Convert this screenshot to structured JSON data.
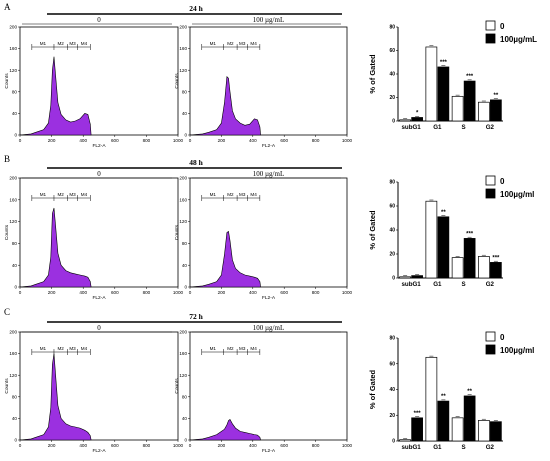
{
  "colors": {
    "histogram_fill": "#9b30e0",
    "bar_control": "#ffffff",
    "bar_treated": "#000000",
    "axis": "#000000"
  },
  "legend": {
    "control_label": "0"
  },
  "chart_data": [
    {
      "type": "area",
      "panel": "A",
      "time_label": "24 h",
      "treatment_label": "0",
      "xlabel": "FL2-A",
      "ylabel": "Counts",
      "xlim": [
        0,
        1000
      ],
      "ylim": [
        0,
        200
      ],
      "xticks": [
        "0",
        "200",
        "400",
        "600",
        "800",
        "1000"
      ],
      "yticks": [
        "0",
        "40",
        "80",
        "120",
        "160",
        "200"
      ],
      "markers": [
        "M1",
        "M2",
        "M3",
        "M4"
      ],
      "x": [
        0,
        70,
        100,
        150,
        180,
        195,
        205,
        215,
        225,
        240,
        260,
        290,
        320,
        350,
        380,
        410,
        430,
        445,
        450
      ],
      "values": [
        0,
        2,
        5,
        10,
        22,
        55,
        120,
        145,
        110,
        60,
        38,
        28,
        24,
        26,
        30,
        40,
        38,
        20,
        0
      ]
    },
    {
      "type": "area",
      "panel": "A",
      "time_label": "24 h",
      "treatment_label": "100 µg/mL",
      "xlabel": "FL2-A",
      "ylabel": "Counts",
      "xlim": [
        0,
        1000
      ],
      "ylim": [
        0,
        200
      ],
      "xticks": [
        "0",
        "200",
        "400",
        "600",
        "800",
        "1000"
      ],
      "yticks": [
        "0",
        "40",
        "80",
        "120",
        "160",
        "200"
      ],
      "markers": [
        "M1",
        "M2",
        "M3",
        "M4"
      ],
      "x": [
        0,
        80,
        120,
        170,
        200,
        220,
        235,
        245,
        255,
        270,
        290,
        320,
        350,
        380,
        410,
        430,
        445,
        450
      ],
      "values": [
        0,
        2,
        5,
        10,
        22,
        60,
        108,
        105,
        80,
        45,
        30,
        22,
        18,
        20,
        30,
        28,
        15,
        0
      ]
    },
    {
      "type": "bar",
      "panel": "A",
      "title": "",
      "xlabel": "",
      "ylabel": "% of Gated",
      "categories": [
        "subG1",
        "G1",
        "S",
        "G2"
      ],
      "ylim": [
        0,
        80
      ],
      "yticks": [
        "0",
        "20",
        "40",
        "60",
        "80"
      ],
      "series": [
        {
          "name": "0",
          "values": [
            1,
            63,
            21,
            16
          ]
        },
        {
          "name": "100µg/mL",
          "values": [
            3,
            46,
            34,
            18
          ]
        }
      ],
      "significance": [
        "*",
        "***",
        "***",
        "**"
      ]
    },
    {
      "type": "area",
      "panel": "B",
      "time_label": "48 h",
      "treatment_label": "0",
      "xlabel": "FL2-A",
      "ylabel": "Counts",
      "xlim": [
        0,
        1000
      ],
      "ylim": [
        0,
        200
      ],
      "xticks": [
        "0",
        "200",
        "400",
        "600",
        "800",
        "1000"
      ],
      "yticks": [
        "0",
        "40",
        "80",
        "120",
        "160",
        "200"
      ],
      "markers": [
        "M1",
        "M2",
        "M3",
        "M4"
      ],
      "x": [
        0,
        70,
        100,
        150,
        180,
        195,
        205,
        215,
        225,
        240,
        260,
        290,
        320,
        350,
        380,
        410,
        430,
        445,
        450
      ],
      "values": [
        0,
        2,
        5,
        10,
        22,
        55,
        135,
        145,
        112,
        62,
        40,
        30,
        26,
        24,
        22,
        20,
        18,
        10,
        0
      ]
    },
    {
      "type": "area",
      "panel": "B",
      "time_label": "48 h",
      "treatment_label": "100 µg/mL",
      "xlabel": "FL2-A",
      "ylabel": "Counts",
      "xlim": [
        0,
        1000
      ],
      "ylim": [
        0,
        200
      ],
      "xticks": [
        "0",
        "200",
        "400",
        "600",
        "800",
        "1000"
      ],
      "yticks": [
        "0",
        "40",
        "80",
        "120",
        "160",
        "200"
      ],
      "markers": [
        "M1",
        "M2",
        "M3",
        "M4"
      ],
      "x": [
        0,
        80,
        120,
        170,
        200,
        220,
        235,
        245,
        255,
        270,
        290,
        320,
        350,
        380,
        410,
        430,
        445,
        450
      ],
      "values": [
        0,
        2,
        5,
        10,
        22,
        60,
        100,
        102,
        85,
        50,
        34,
        26,
        22,
        20,
        18,
        16,
        10,
        0
      ]
    },
    {
      "type": "bar",
      "panel": "B",
      "title": "",
      "xlabel": "",
      "ylabel": "% of Gated",
      "categories": [
        "subG1",
        "G1",
        "S",
        "G2"
      ],
      "ylim": [
        0,
        80
      ],
      "yticks": [
        "0",
        "20",
        "40",
        "60",
        "80"
      ],
      "series": [
        {
          "name": "0",
          "values": [
            1,
            64,
            17,
            18
          ]
        },
        {
          "name": "100µg/ml",
          "values": [
            2,
            51,
            33,
            13
          ]
        }
      ],
      "significance": [
        "",
        "**",
        "***",
        "***"
      ]
    },
    {
      "type": "area",
      "panel": "C",
      "time_label": "72 h",
      "treatment_label": "0",
      "xlabel": "FL2-A",
      "ylabel": "Counts",
      "xlim": [
        0,
        1000
      ],
      "ylim": [
        0,
        200
      ],
      "xticks": [
        "0",
        "200",
        "400",
        "600",
        "800",
        "1000"
      ],
      "yticks": [
        "0",
        "40",
        "80",
        "120",
        "160",
        "200"
      ],
      "markers": [
        "M1",
        "M2",
        "M3",
        "M4"
      ],
      "x": [
        0,
        70,
        100,
        150,
        180,
        195,
        205,
        215,
        225,
        240,
        260,
        290,
        320,
        350,
        380,
        410,
        430,
        445,
        450
      ],
      "values": [
        0,
        2,
        5,
        10,
        24,
        60,
        140,
        160,
        120,
        64,
        40,
        30,
        26,
        24,
        22,
        18,
        14,
        8,
        0
      ]
    },
    {
      "type": "area",
      "panel": "C",
      "time_label": "72 h",
      "treatment_label": "100 µg/mL",
      "xlabel": "FL2-A",
      "ylabel": "Counts",
      "xlim": [
        0,
        1000
      ],
      "ylim": [
        0,
        200
      ],
      "xticks": [
        "0",
        "200",
        "400",
        "600",
        "800",
        "1000"
      ],
      "yticks": [
        "0",
        "40",
        "80",
        "120",
        "160",
        "200"
      ],
      "markers": [
        "M1",
        "M2",
        "M3",
        "M4"
      ],
      "x": [
        0,
        80,
        120,
        170,
        200,
        220,
        235,
        245,
        255,
        270,
        290,
        320,
        350,
        380,
        410,
        430,
        445,
        450
      ],
      "values": [
        0,
        2,
        5,
        10,
        16,
        20,
        28,
        36,
        38,
        30,
        22,
        16,
        14,
        12,
        10,
        9,
        5,
        0
      ]
    },
    {
      "type": "bar",
      "panel": "C",
      "title": "",
      "xlabel": "",
      "ylabel": "% of Gated",
      "categories": [
        "subG1",
        "G1",
        "S",
        "G2"
      ],
      "ylim": [
        0,
        80
      ],
      "yticks": [
        "0",
        "20",
        "40",
        "60",
        "80"
      ],
      "series": [
        {
          "name": "0",
          "values": [
            1,
            65,
            18,
            16
          ]
        },
        {
          "name": "100µg/ml",
          "values": [
            18,
            31,
            35,
            15
          ]
        }
      ],
      "significance": [
        "***",
        "**",
        "**",
        ""
      ]
    }
  ]
}
